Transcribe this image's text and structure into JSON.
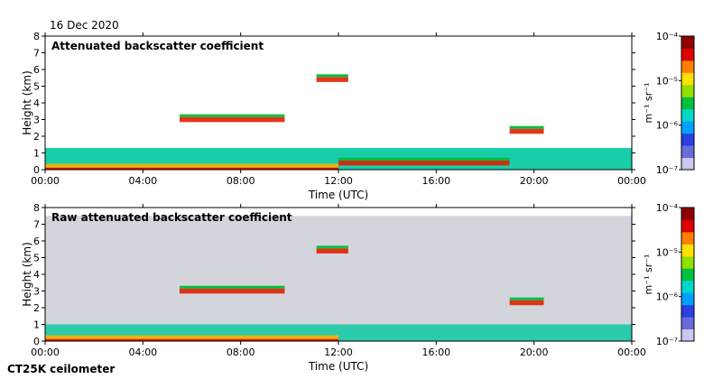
{
  "date": "16 Dec 2020",
  "footer": "CT25K ceilometer",
  "chart_data": [
    {
      "type": "heatmap",
      "title": "Attenuated backscatter coefficient",
      "xlabel": "Time (UTC)",
      "ylabel": "Height (km)",
      "xticks": [
        "00:00",
        "04:00",
        "08:00",
        "12:00",
        "16:00",
        "20:00",
        "00:00"
      ],
      "yticks": [
        "0",
        "1",
        "2",
        "3",
        "4",
        "5",
        "6",
        "7",
        "8"
      ],
      "xlim_hours": [
        0,
        24
      ],
      "ylim_km": [
        0,
        8
      ],
      "colorbar": {
        "label": "m⁻¹ sr⁻¹",
        "scale": "log",
        "range": [
          1e-07,
          0.0001
        ],
        "ticks": [
          "10⁻⁷",
          "10⁻⁶",
          "10⁻⁵",
          "10⁻⁴"
        ]
      },
      "features": [
        {
          "name": "surface aerosol layer",
          "t_start": 0.0,
          "t_end": 24.0,
          "height_km": [
            0.0,
            1.3
          ]
        },
        {
          "name": "cloud base layer",
          "t_start": 5.5,
          "t_end": 9.8,
          "height_km": 3.0
        },
        {
          "name": "elevated cloud",
          "t_start": 11.1,
          "t_end": 12.4,
          "height_km": 5.4
        },
        {
          "name": "low cloud",
          "t_start": 12.0,
          "t_end": 19.0,
          "height_km": 0.4
        },
        {
          "name": "cloud",
          "t_start": 19.0,
          "t_end": 20.4,
          "height_km": 2.3
        }
      ]
    },
    {
      "type": "heatmap",
      "title": "Raw attenuated backscatter coefficient",
      "xlabel": "Time (UTC)",
      "ylabel": "Height (km)",
      "xticks": [
        "00:00",
        "04:00",
        "08:00",
        "12:00",
        "16:00",
        "20:00",
        "00:00"
      ],
      "yticks": [
        "0",
        "1",
        "2",
        "3",
        "4",
        "5",
        "6",
        "7",
        "8"
      ],
      "xlim_hours": [
        0,
        24
      ],
      "ylim_km": [
        0,
        8
      ],
      "colorbar": {
        "label": "m⁻¹ sr⁻¹",
        "scale": "log",
        "range": [
          1e-07,
          0.0001
        ],
        "ticks": [
          "10⁻⁷",
          "10⁻⁶",
          "10⁻⁵",
          "10⁻⁴"
        ]
      },
      "features": [
        {
          "name": "noise background",
          "t_start": 0.0,
          "t_end": 24.0,
          "height_km": [
            0.0,
            7.5
          ]
        },
        {
          "name": "cloud base layer",
          "t_start": 5.5,
          "t_end": 9.8,
          "height_km": 3.0
        },
        {
          "name": "elevated cloud",
          "t_start": 11.1,
          "t_end": 12.4,
          "height_km": 5.4
        },
        {
          "name": "cloud",
          "t_start": 19.0,
          "t_end": 20.4,
          "height_km": 2.3
        }
      ]
    }
  ]
}
